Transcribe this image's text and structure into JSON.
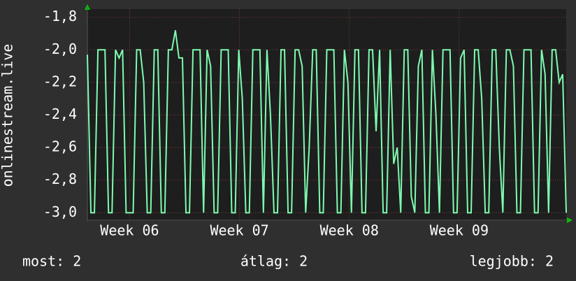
{
  "chart_data": {
    "type": "line",
    "ylabel": "onlinestream.live",
    "ylim": [
      -3.05,
      -1.75
    ],
    "yticks": [
      {
        "value": -1.8,
        "label": "-1,8"
      },
      {
        "value": -2.0,
        "label": "-2,0"
      },
      {
        "value": -2.2,
        "label": "-2,2"
      },
      {
        "value": -2.4,
        "label": "-2,4"
      },
      {
        "value": -2.6,
        "label": "-2,6"
      },
      {
        "value": -2.8,
        "label": "-2,8"
      },
      {
        "value": -3.0,
        "label": "-3,0"
      }
    ],
    "xlim": [
      0,
      136
    ],
    "xticks": [
      {
        "value": 12,
        "label": "Week 06"
      },
      {
        "value": 43.2,
        "label": "Week 07"
      },
      {
        "value": 74.4,
        "label": "Week 08"
      },
      {
        "value": 105.6,
        "label": "Week 09"
      }
    ],
    "grid": true,
    "color": "#7dfcb0",
    "values": [
      -2.03,
      -3,
      -3,
      -2,
      -2,
      -2,
      -3,
      -3,
      -2,
      -2.05,
      -2,
      -3,
      -3,
      -3,
      -2,
      -2,
      -2.2,
      -3,
      -3,
      -2,
      -2,
      -3,
      -3,
      -2,
      -2,
      -1.88,
      -2.05,
      -2.05,
      -3,
      -3,
      -2,
      -2,
      -2,
      -3,
      -2,
      -2.1,
      -3,
      -3,
      -2,
      -2,
      -2,
      -3,
      -3,
      -2,
      -2.3,
      -3,
      -3,
      -2,
      -2,
      -2,
      -3,
      -2,
      -2.4,
      -3,
      -3,
      -2,
      -2,
      -3,
      -3,
      -2,
      -2,
      -2.1,
      -3,
      -2.6,
      -2,
      -2,
      -3,
      -3,
      -2,
      -2,
      -2,
      -3,
      -3,
      -2,
      -2.2,
      -3,
      -2,
      -2,
      -3,
      -3,
      -2,
      -2,
      -2.5,
      -2,
      -3,
      -3,
      -2,
      -2.7,
      -2.6,
      -3,
      -2,
      -2,
      -2.9,
      -3,
      -2.1,
      -2,
      -3,
      -3,
      -2,
      -2.4,
      -3,
      -2,
      -2,
      -2,
      -3,
      -3,
      -2.05,
      -2,
      -3,
      -3,
      -2,
      -2,
      -2.3,
      -3,
      -3,
      -2,
      -2,
      -2.6,
      -3,
      -2,
      -2,
      -2.1,
      -3,
      -3,
      -2,
      -2,
      -2,
      -3,
      -3,
      -2,
      -2.15,
      -3,
      -2,
      -2,
      -2.2,
      -2.15,
      -3
    ],
    "stats": [
      "most: 2",
      "átlag: 2",
      "legjobb: 2"
    ]
  }
}
